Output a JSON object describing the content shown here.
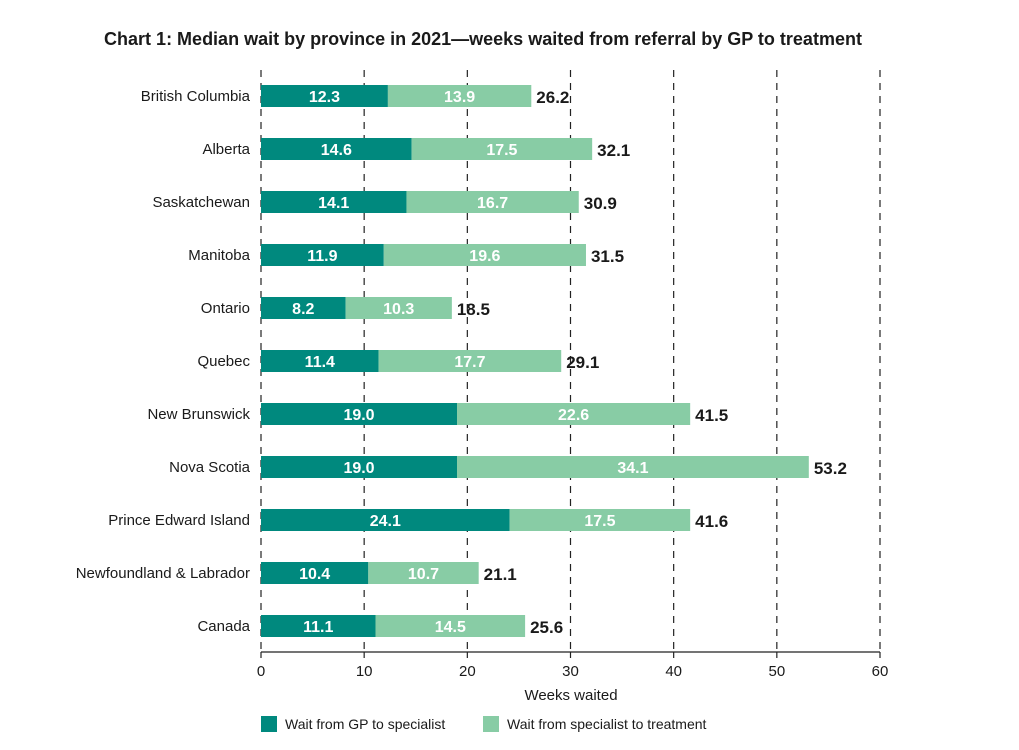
{
  "chart_data": {
    "type": "bar",
    "orientation": "horizontal",
    "stacked": true,
    "title": "Chart 1: Median wait by province in 2021—weeks waited from referral by GP to treatment",
    "xlabel": "Weeks waited",
    "ylabel": "",
    "xlim": [
      0,
      60
    ],
    "xticks": [
      0,
      10,
      20,
      30,
      40,
      50,
      60
    ],
    "grid": "vertical dashed",
    "legend": "bottom",
    "categories": [
      "British Columbia",
      "Alberta",
      "Saskatchewan",
      "Manitoba",
      "Ontario",
      "Quebec",
      "New Brunswick",
      "Nova Scotia",
      "Prince Edward Island",
      "Newfoundland & Labrador",
      "Canada"
    ],
    "series": [
      {
        "name": "Wait from GP to specialist",
        "color": "#00897E",
        "values": [
          12.3,
          14.6,
          14.1,
          11.9,
          8.2,
          11.4,
          19.0,
          19.0,
          24.1,
          10.4,
          11.1
        ]
      },
      {
        "name": "Wait from specialist to treatment",
        "color": "#88CCA5",
        "values": [
          13.9,
          17.5,
          16.7,
          19.6,
          10.3,
          17.7,
          22.6,
          34.1,
          17.5,
          10.7,
          14.5
        ]
      }
    ],
    "totals": [
      26.2,
      32.1,
      30.9,
      31.5,
      18.5,
      29.1,
      41.5,
      53.2,
      41.6,
      21.1,
      25.6
    ]
  }
}
